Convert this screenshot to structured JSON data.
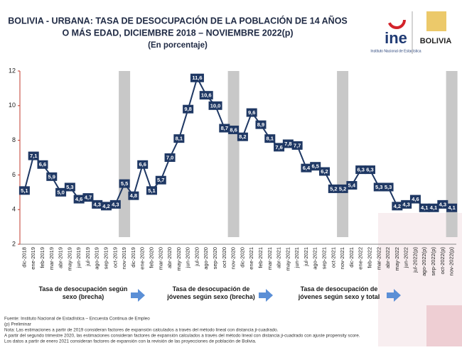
{
  "header": {
    "logo_ine": "ine",
    "logo_ine_sub": "Instituto Nacional de Estadística",
    "logo_bolivia": "BOLIVIA"
  },
  "chart_data": {
    "type": "line",
    "title": [
      "BOLIVIA - URBANA: TASA DE DESOCUPACIÓN DE LA POBLACIÓN DE 14 AÑOS",
      "O MÁS EDAD, DICIEMBRE 2018 – NOVIEMBRE 2022(p)",
      "(En porcentaje)"
    ],
    "categories": [
      "dic-2018",
      "ene-2019",
      "feb-2019",
      "mar-2019",
      "abr-2019",
      "may-2019",
      "jun-2019",
      "jul-2019",
      "ago-2019",
      "sep-2019",
      "oct-2019",
      "nov-2019",
      "dic-2019",
      "ene-2020",
      "feb-2020",
      "mar-2020",
      "abr-2020",
      "may-2020",
      "jun-2020",
      "jul-2020",
      "ago-2020",
      "sep-2020",
      "oct-2020",
      "nov-2020",
      "dic-2020",
      "ene-2021",
      "feb-2021",
      "mar-2021",
      "abr-2021",
      "may-2021",
      "jun-2021",
      "jul-2021",
      "ago-2021",
      "sep-2021",
      "oct-2021",
      "nov-2021",
      "dic-2021",
      "ene-2022",
      "feb-2022",
      "mar-2022",
      "abr-2022",
      "may-2022",
      "jun-2022",
      "jul-2022(p)",
      "ago-2022(p)",
      "sep-2022(p)",
      "oct-2022(p)",
      "nov-2022(p)"
    ],
    "values": [
      5.1,
      7.1,
      6.6,
      5.9,
      5.0,
      5.3,
      4.6,
      4.7,
      4.3,
      4.2,
      4.3,
      5.5,
      4.8,
      6.6,
      5.1,
      5.7,
      7.0,
      8.1,
      9.8,
      11.6,
      10.6,
      10.0,
      8.7,
      8.6,
      8.2,
      9.6,
      8.9,
      8.1,
      7.6,
      7.8,
      7.7,
      6.4,
      6.5,
      6.2,
      5.2,
      5.2,
      5.4,
      6.3,
      6.3,
      5.3,
      5.3,
      4.2,
      4.3,
      4.6,
      4.1,
      4.1,
      4.3,
      4.1
    ],
    "value_labels": [
      "5,1",
      "7,1",
      "6,6",
      "5,9",
      "5,0",
      "5,3",
      "4,6",
      "4,7",
      "4,3",
      "4,2",
      "4,3",
      "5,5",
      "4,8",
      "6,6",
      "5,1",
      "5,7",
      "7,0",
      "8,1",
      "9,8",
      "11,6",
      "10,6",
      "10,0",
      "8,7",
      "8,6",
      "8,2",
      "9,6",
      "8,9",
      "8,1",
      "7,6",
      "7,8",
      "7,7",
      "6,4",
      "6,5",
      "6,2",
      "5,2",
      "5,2",
      "5,4",
      "6,3",
      "6,3",
      "5,3",
      "5,3",
      "4,2",
      "4,3",
      "4,6",
      "4,1",
      "4,1",
      "4,3",
      "4,1"
    ],
    "color": "#1f3864",
    "highlight_indices": [
      11,
      23,
      35,
      47
    ],
    "highlight_color": "#c8c8c8",
    "ylim": [
      2,
      12
    ],
    "yticks": [
      2,
      4,
      6,
      8,
      10,
      12
    ]
  },
  "links": [
    "Tasa de desocupación según sexo (brecha)",
    "Tasa de desocupación de jóvenes según sexo (brecha)",
    "Tasa de desocupación de jóvenes según sexo y total"
  ],
  "footnotes": [
    "Fuente: Instituto Nacional de Estadística – Encuesta Continua de Empleo",
    "(p) Preliminar",
    "Nota: Las estimaciones a partir de 2019 consideran factores de expansión calculados a través del método lineal con distancia ji-cuadrado.",
    "A partir del segundo trimestre 2020, las estimaciones consideran factores de expansión calculados a través del método lineal con distancia ji-cuadrado con ajuste propensity score.",
    "Los datos a partir de enero 2021 consideran factores de expansión con la revisión de las proyecciones de población de Bolivia."
  ]
}
